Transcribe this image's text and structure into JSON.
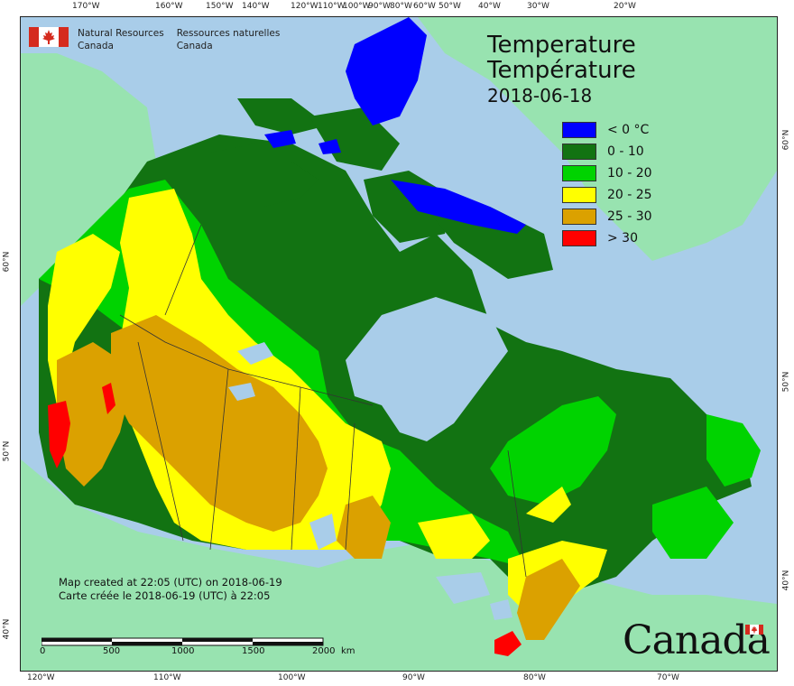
{
  "map": {
    "title_en": "Temperature",
    "title_fr": "Température",
    "date": "2018-06-18",
    "legend": [
      {
        "label": "< 0 °C",
        "color": "#0000ff"
      },
      {
        "label": "0 - 10",
        "color": "#127312"
      },
      {
        "label": "10 - 20",
        "color": "#00d300"
      },
      {
        "label": "20 - 25",
        "color": "#ffff00"
      },
      {
        "label": "25 - 30",
        "color": "#dba100"
      },
      {
        "label": "> 30",
        "color": "#ff0000"
      }
    ],
    "agency_en": [
      "Natural Resources",
      "Canada"
    ],
    "agency_fr": [
      "Ressources naturelles",
      "Canada"
    ],
    "credit_en": "Map created at 22:05 (UTC) on 2018-06-19",
    "credit_fr": "Carte créée le 2018-06-19 (UTC) à 22:05",
    "scale_labels": [
      "0",
      "500",
      "1000",
      "1500",
      "2000"
    ],
    "scale_unit": "km",
    "wordmark": "Canada",
    "top_ticks": [
      "170°W",
      "160°W",
      "150°W",
      "140°W",
      "120°W",
      "110°W",
      "100°W",
      "90°W",
      "80°W",
      "60°W",
      "50°W",
      "40°W",
      "30°W",
      "20°W"
    ],
    "bottom_ticks": [
      "120°W",
      "110°W",
      "100°W",
      "90°W",
      "80°W",
      "70°W"
    ],
    "left_ticks": [
      "60°N",
      "50°N",
      "40°N"
    ],
    "right_ticks": [
      "60°N",
      "50°N",
      "40°N"
    ],
    "colors": {
      "ocean": "#a9cde9",
      "land_other": "#98e3b0",
      "boundary": "#333333"
    }
  }
}
